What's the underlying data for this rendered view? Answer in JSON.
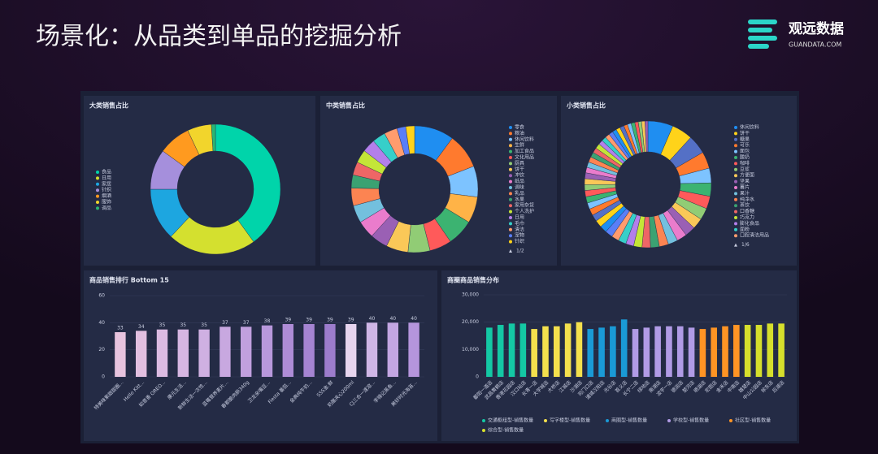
{
  "header": {
    "title": "场景化：从品类到单品的挖掘分析",
    "logo": "观远数据",
    "logo_sub": "GUANDATA.COM"
  },
  "chart_data": [
    {
      "type": "pie",
      "title": "大类销售占比",
      "categories": [
        "食品",
        "日用",
        "家居",
        "针织",
        "烟酒",
        "服饰",
        "调品"
      ],
      "values": [
        40,
        22,
        13,
        10,
        8,
        6,
        1
      ],
      "colors": [
        "#00d4aa",
        "#d4e02f",
        "#1da6e0",
        "#a58fdc",
        "#ff9a1f",
        "#f2d52c",
        "#2bb673"
      ]
    },
    {
      "type": "pie",
      "title": "中类销售占比",
      "categories": [
        "零食",
        "粮油",
        "休闲饮料",
        "生鲜",
        "加工食品",
        "文化用品",
        "厨具",
        "饼干",
        "冲饮",
        "纸品",
        "调味",
        "乳品",
        "水果",
        "家用杂货",
        "个人洗护",
        "日用",
        "毛巾",
        "清洁",
        "宠物",
        "针织"
      ],
      "values": [
        9,
        8,
        7,
        6,
        6,
        5,
        5,
        5,
        4,
        4,
        4,
        4,
        3,
        3,
        3,
        3,
        3,
        3,
        2,
        2
      ],
      "colors": [
        "#1f8ef1",
        "#ff7a2e",
        "#7dc3ff",
        "#ffb347",
        "#3cb371",
        "#ff5a5a",
        "#91cc75",
        "#fac858",
        "#9a60b4",
        "#ea7ccc",
        "#73c0de",
        "#fc8452",
        "#3ba272",
        "#ee6666",
        "#c4e538",
        "#b37feb",
        "#36cfc9",
        "#ff9c6e",
        "#597ef7",
        "#ffd31a"
      ],
      "legend_page": "1/2"
    },
    {
      "type": "pie",
      "title": "小类销售占比",
      "categories": [
        "休闲饮料",
        "饼干",
        "糖果",
        "可乐",
        "面包",
        "酸奶",
        "咖啡",
        "豆浆",
        "方便面",
        "坚果",
        "薯片",
        "果汁",
        "纯净水",
        "茶饮",
        "口香糖",
        "巧克力",
        "膨化食品",
        "面粉",
        "口腔清洁用品",
        null,
        null,
        null,
        null,
        null,
        null,
        null,
        null,
        null,
        null,
        null,
        null,
        null,
        null,
        null,
        null,
        null,
        null,
        null,
        null,
        null,
        null,
        null,
        null,
        null,
        null,
        null,
        null,
        null,
        null,
        null
      ],
      "values": [
        6,
        5,
        4.5,
        4,
        3.5,
        3.2,
        3,
        2.8,
        2.6,
        2.5,
        2.4,
        2.3,
        2.2,
        2.1,
        2,
        2,
        1.9,
        1.9,
        1.8,
        1.8,
        1.7,
        1.7,
        1.6,
        1.6,
        1.5,
        1.5,
        1.5,
        1.4,
        1.4,
        1.4,
        1.3,
        1.3,
        1.3,
        1.2,
        1.2,
        1.2,
        1.1,
        1.1,
        1.1,
        1,
        1,
        1,
        1,
        0.9,
        0.9,
        0.9,
        0.8,
        0.8,
        0.8,
        0.7
      ],
      "colors": [
        "#1f8ef1",
        "#ffd31a",
        "#5470c6",
        "#ff7a2e",
        "#7dc3ff",
        "#3cb371",
        "#ff5a5a",
        "#91cc75",
        "#fac858",
        "#9a60b4",
        "#ea7ccc",
        "#73c0de",
        "#fc8452",
        "#3ba272",
        "#ee6666",
        "#c4e538",
        "#b37feb",
        "#36cfc9",
        "#ff9c6e",
        "#597ef7"
      ],
      "legend_page": "1/6"
    },
    {
      "type": "bar",
      "title": "商品销售排行 Bottom 15",
      "categories": [
        "特美味紫甜甜圈...",
        "Hello Kitt...",
        "如意香 OREO...",
        "康元生活...",
        "新鲜生活一次性...",
        "蓝莓营养麦片...",
        "春都脆肉肠340g",
        "卫龙亲嘴豆...",
        "Fiesta 番茄...",
        "金典纯牛奶...",
        "SSS金.鲜",
        "奶酪夹心200ml",
        "CJ三合一速溶...",
        "李锦记蒸鱼...",
        "美好时光海苔..."
      ],
      "values": [
        33,
        34,
        35,
        35,
        35,
        37,
        37,
        38,
        39,
        39,
        39,
        39,
        40,
        40,
        40
      ],
      "colors": [
        "#e7c3de",
        "#e2bfe0",
        "#dcbbe2",
        "#d6b6e2",
        "#cfb0e2",
        "#c8a8e0",
        "#c1a0de",
        "#b898dc",
        "#ae8cd6",
        "#a584d2",
        "#9c7ccc",
        "#e6d4ee",
        "#cfb6e6",
        "#c3a6e2",
        "#b595dc"
      ],
      "ylim": [
        0,
        60
      ],
      "yticks": [
        0,
        20,
        40,
        60
      ],
      "grid": true
    },
    {
      "type": "bar",
      "title": "商圈商品销售分布",
      "categories": [
        "鄱阳一道店",
        "武昌黄鹤店",
        "香港花园店",
        "汉口站店",
        "长青一店",
        "大学城店",
        "大桥店",
        "江城店",
        "沙湖店",
        "司门口店",
        "浦城汉阳店",
        "光谷店",
        "首义店",
        "长宁二店",
        "绿地店",
        "南湖店",
        "凌宇一店",
        "德润店",
        "楚河店",
        "晒湖店",
        "宏图店",
        "金禾店",
        "中南店",
        "雄楚店",
        "中山公园店",
        "徐东店",
        "后湖店"
      ],
      "series": [
        {
          "name": "交通枢纽型-销售数量",
          "color": "#14c8a4",
          "values": [
            18000,
            19000,
            19500,
            19500,
            null,
            null,
            null,
            null,
            null,
            null,
            null,
            null,
            null,
            null,
            null,
            null,
            null,
            null,
            null,
            null,
            null,
            null,
            null,
            null,
            null,
            null,
            null
          ]
        },
        {
          "name": "写字楼型-销售数量",
          "color": "#f4e04d",
          "values": [
            null,
            null,
            null,
            null,
            17500,
            18500,
            18500,
            19500,
            20000,
            null,
            null,
            null,
            null,
            null,
            null,
            null,
            null,
            null,
            null,
            null,
            null,
            null,
            null,
            null,
            null,
            null,
            null
          ]
        },
        {
          "name": "商圈型-销售数量",
          "color": "#1a9ad6",
          "values": [
            null,
            null,
            null,
            null,
            null,
            null,
            null,
            null,
            null,
            17500,
            18000,
            18500,
            21000,
            null,
            null,
            null,
            null,
            null,
            null,
            null,
            null,
            null,
            null,
            null,
            null,
            null,
            null
          ]
        },
        {
          "name": "学校型-销售数量",
          "color": "#b19be6",
          "values": [
            null,
            null,
            null,
            null,
            null,
            null,
            null,
            null,
            null,
            null,
            null,
            null,
            null,
            17500,
            18000,
            18500,
            18500,
            18500,
            18000,
            null,
            null,
            null,
            null,
            null,
            null,
            null,
            null
          ]
        },
        {
          "name": "社区型-销售数量",
          "color": "#ff9424",
          "values": [
            null,
            null,
            null,
            null,
            null,
            null,
            null,
            null,
            null,
            null,
            null,
            null,
            null,
            null,
            null,
            null,
            null,
            null,
            null,
            17500,
            18000,
            18500,
            19000,
            null,
            null,
            null,
            null
          ]
        },
        {
          "name": "综合型-销售数量",
          "color": "#d6df2c",
          "values": [
            null,
            null,
            null,
            null,
            null,
            null,
            null,
            null,
            null,
            null,
            null,
            null,
            null,
            null,
            null,
            null,
            null,
            null,
            null,
            null,
            null,
            null,
            null,
            19000,
            19000,
            19500,
            19500
          ]
        }
      ],
      "ylim": [
        0,
        30000
      ],
      "yticks": [
        0,
        {
          "value": 10000,
          "label": "10,000"
        },
        {
          "value": 20000,
          "label": "20,000"
        },
        {
          "value": 30000,
          "label": "30,000"
        }
      ],
      "grid": true
    }
  ]
}
